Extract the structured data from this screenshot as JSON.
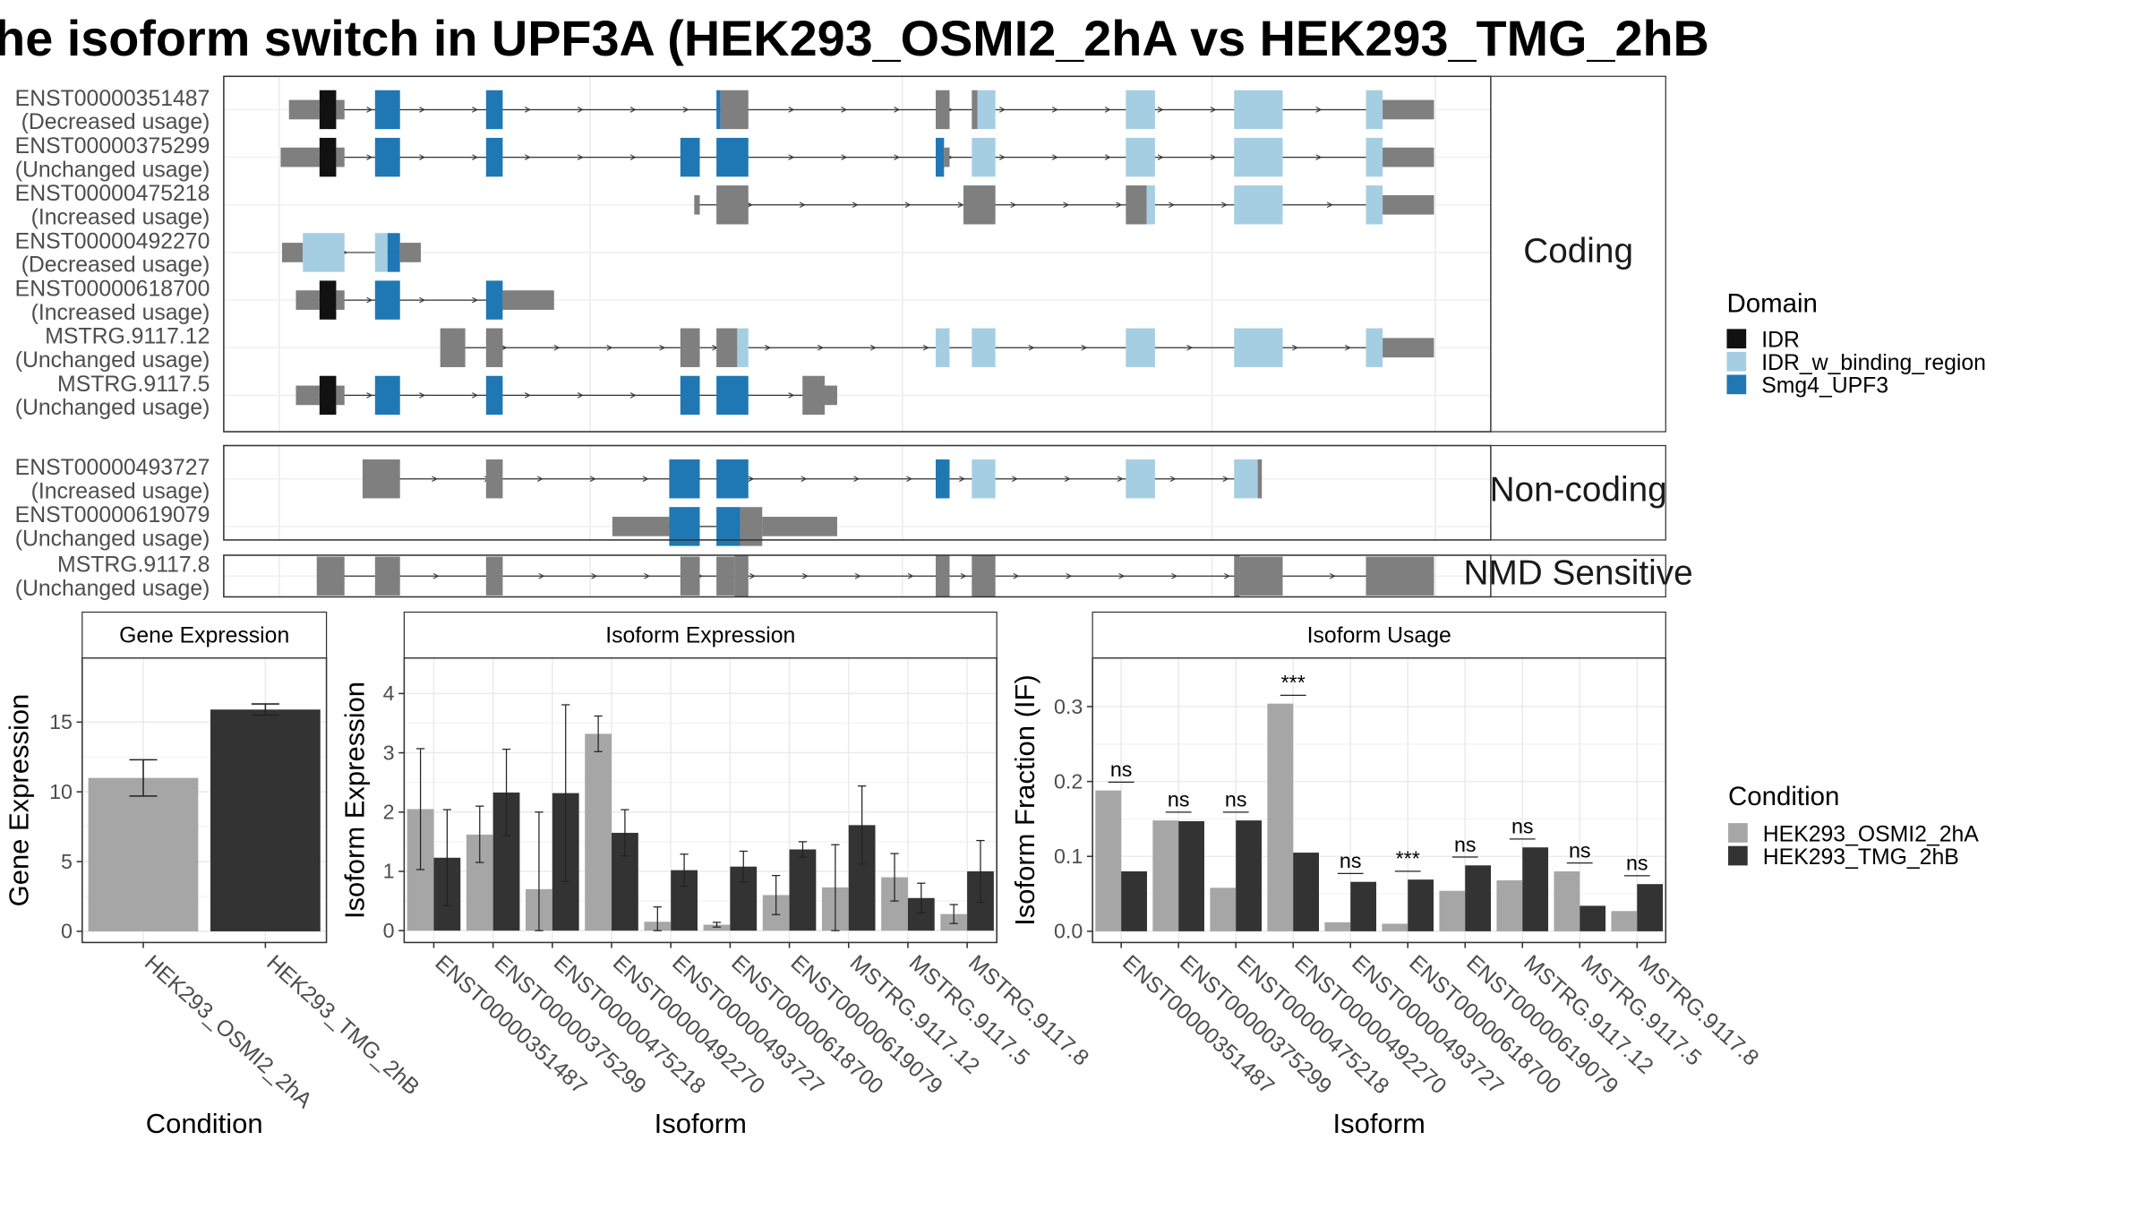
{
  "title": "he isoform switch in UPF3A (HEK293_OSMI2_2hA vs HEK293_TMG_2hB",
  "colors": {
    "IDR": "#111111",
    "IDR_w_binding_region": "#a6cee3",
    "Smg4_UPF3": "#1f78b4",
    "exon": "#7f7f7f",
    "cond1": "#a6a6a6",
    "cond2": "#333333"
  },
  "legend_domain": {
    "title": "Domain",
    "items": [
      {
        "name": "IDR",
        "color": "#111111"
      },
      {
        "name": "IDR_w_binding_region",
        "color": "#a6cee3"
      },
      {
        "name": "Smg4_UPF3",
        "color": "#1f78b4"
      }
    ]
  },
  "legend_condition": {
    "title": "Condition",
    "items": [
      {
        "name": "HEK293_OSMI2_2hA",
        "color": "#a6a6a6"
      },
      {
        "name": "HEK293_TMG_2hB",
        "color": "#333333"
      }
    ]
  },
  "transcript_panels": [
    {
      "strip": "Coding",
      "rows": [
        {
          "id": "ENST00000351487",
          "usage": "(Decreased usage)",
          "segs": [
            [
              208,
              230,
              "u"
            ],
            [
              230,
              242,
              "D"
            ],
            [
              242,
              248,
              "u"
            ],
            [
              270,
              288,
              "S"
            ],
            [
              350,
              362,
              "S"
            ],
            [
              516,
              519,
              "S"
            ],
            [
              519,
              539,
              "c"
            ],
            [
              674,
              684,
              "c"
            ],
            [
              700,
              704,
              "c"
            ],
            [
              704,
              717,
              "B"
            ],
            [
              811,
              832,
              "B"
            ],
            [
              889,
              924,
              "B"
            ],
            [
              984,
              996,
              "B"
            ],
            [
              996,
              1033,
              "u"
            ]
          ],
          "line": [
            228,
            1000
          ]
        },
        {
          "id": "ENST00000375299",
          "usage": "(Unchanged usage)",
          "segs": [
            [
              202,
              230,
              "u"
            ],
            [
              230,
              242,
              "D"
            ],
            [
              242,
              248,
              "u"
            ],
            [
              270,
              288,
              "S"
            ],
            [
              350,
              362,
              "S"
            ],
            [
              490,
              504,
              "S"
            ],
            [
              516,
              539,
              "S"
            ],
            [
              674,
              680,
              "S"
            ],
            [
              680,
              684,
              "u"
            ],
            [
              700,
              717,
              "B"
            ],
            [
              811,
              832,
              "B"
            ],
            [
              889,
              924,
              "B"
            ],
            [
              984,
              996,
              "B"
            ],
            [
              996,
              1033,
              "u"
            ]
          ],
          "line": [
            228,
            1000
          ]
        },
        {
          "id": "ENST00000475218",
          "usage": "(Increased usage)",
          "segs": [
            [
              500,
              504,
              "u"
            ],
            [
              516,
              539,
              "c"
            ],
            [
              694,
              717,
              "c"
            ],
            [
              811,
              826,
              "c"
            ],
            [
              826,
              832,
              "B"
            ],
            [
              889,
              924,
              "B"
            ],
            [
              984,
              996,
              "B"
            ],
            [
              996,
              1033,
              "u"
            ]
          ],
          "line": [
            502,
            1000
          ]
        },
        {
          "id": "ENST00000492270",
          "usage": "(Decreased usage)",
          "segs": [
            [
              203,
              218,
              "u"
            ],
            [
              218,
              248,
              "B"
            ],
            [
              270,
              279,
              "B"
            ],
            [
              279,
              288,
              "S"
            ],
            [
              288,
              303,
              "u"
            ]
          ],
          "line": [
            210,
            290
          ]
        },
        {
          "id": "ENST00000618700",
          "usage": "(Increased usage)",
          "segs": [
            [
              213,
              230,
              "u"
            ],
            [
              230,
              242,
              "D"
            ],
            [
              242,
              248,
              "u"
            ],
            [
              270,
              288,
              "S"
            ],
            [
              350,
              362,
              "S"
            ],
            [
              362,
              399,
              "u"
            ]
          ],
          "line": [
            228,
            380
          ]
        },
        {
          "id": "MSTRG.9117.12",
          "usage": "(Unchanged usage)",
          "segs": [
            [
              317,
              335,
              "c"
            ],
            [
              350,
              362,
              "c"
            ],
            [
              490,
              504,
              "c"
            ],
            [
              516,
              531,
              "c"
            ],
            [
              531,
              539,
              "B"
            ],
            [
              674,
              684,
              "B"
            ],
            [
              700,
              717,
              "B"
            ],
            [
              811,
              832,
              "B"
            ],
            [
              889,
              924,
              "B"
            ],
            [
              984,
              996,
              "B"
            ],
            [
              996,
              1033,
              "u"
            ]
          ],
          "line": [
            325,
            1000
          ]
        },
        {
          "id": "MSTRG.9117.5",
          "usage": "(Unchanged usage)",
          "segs": [
            [
              213,
              230,
              "u"
            ],
            [
              230,
              242,
              "D"
            ],
            [
              242,
              248,
              "u"
            ],
            [
              270,
              288,
              "S"
            ],
            [
              350,
              362,
              "S"
            ],
            [
              490,
              504,
              "S"
            ],
            [
              516,
              539,
              "S"
            ],
            [
              578,
              594,
              "c"
            ],
            [
              594,
              603,
              "u"
            ]
          ],
          "line": [
            228,
            590
          ]
        }
      ]
    },
    {
      "strip": "Non-coding",
      "rows": [
        {
          "id": "ENST00000493727",
          "usage": "(Increased usage)",
          "segs": [
            [
              261,
              288,
              "c"
            ],
            [
              350,
              362,
              "c"
            ],
            [
              482,
              504,
              "S"
            ],
            [
              516,
              539,
              "S"
            ],
            [
              674,
              684,
              "S"
            ],
            [
              700,
              717,
              "B"
            ],
            [
              811,
              832,
              "B"
            ],
            [
              889,
              906,
              "B"
            ],
            [
              906,
              909,
              "c"
            ]
          ],
          "line": [
            275,
            905
          ]
        },
        {
          "id": "ENST00000619079",
          "usage": "(Unchanged usage)",
          "segs": [
            [
              441,
              482,
              "u"
            ],
            [
              482,
              504,
              "S"
            ],
            [
              516,
              533,
              "S"
            ],
            [
              533,
              549,
              "c"
            ],
            [
              549,
              603,
              "u"
            ]
          ],
          "line": [
            460,
            590
          ]
        }
      ]
    },
    {
      "strip": "NMD Sensitive",
      "rows": [
        {
          "id": "MSTRG.9117.8",
          "usage": "(Unchanged usage)",
          "segs": [
            [
              228,
              248,
              "c"
            ],
            [
              270,
              288,
              "c"
            ],
            [
              350,
              362,
              "c"
            ],
            [
              490,
              504,
              "c"
            ],
            [
              516,
              529,
              "c"
            ],
            [
              529,
              539,
              "t"
            ],
            [
              674,
              684,
              "t"
            ],
            [
              700,
              717,
              "t"
            ],
            [
              889,
              893,
              "t"
            ],
            [
              893,
              924,
              "c"
            ],
            [
              984,
              1033,
              "c"
            ]
          ],
          "line": [
            238,
            1000
          ]
        }
      ]
    }
  ],
  "chart_data": [
    {
      "type": "bar",
      "title": "Gene Expression",
      "xlabel": "Condition",
      "ylabel": "Gene Expression",
      "categories": [
        "HEK293_OSMI2_2hA",
        "HEK293_TMG_2hB"
      ],
      "values": [
        11.0,
        15.9
      ],
      "errors": [
        [
          9.7,
          12.3
        ],
        [
          15.5,
          16.3
        ]
      ],
      "ylim": [
        -0.8,
        19.6
      ],
      "yticks": [
        0,
        5,
        10,
        15
      ]
    },
    {
      "type": "bar",
      "title": "Isoform Expression",
      "xlabel": "Isoform",
      "ylabel": "Isoform Expression",
      "categories": [
        "ENST00000351487",
        "ENST00000375299",
        "ENST00000475218",
        "ENST00000492270",
        "ENST00000493727",
        "ENST00000618700",
        "ENST00000619079",
        "MSTRG.9117.12",
        "MSTRG.9117.5",
        "MSTRG.9117.8"
      ],
      "series": [
        {
          "name": "HEK293_OSMI2_2hA",
          "values": [
            2.05,
            1.62,
            0.7,
            3.32,
            0.15,
            0.1,
            0.6,
            0.73,
            0.9,
            0.28
          ],
          "errors": [
            [
              1.03,
              3.07
            ],
            [
              1.15,
              2.1
            ],
            [
              0.0,
              2.0
            ],
            [
              3.02,
              3.62
            ],
            [
              0.0,
              0.4
            ],
            [
              0.06,
              0.14
            ],
            [
              0.27,
              0.93
            ],
            [
              0.0,
              1.45
            ],
            [
              0.5,
              1.3
            ],
            [
              0.12,
              0.44
            ]
          ]
        },
        {
          "name": "HEK293_TMG_2hB",
          "values": [
            1.23,
            2.33,
            2.32,
            1.65,
            1.02,
            1.08,
            1.37,
            1.78,
            0.55,
            1.0
          ],
          "errors": [
            [
              0.42,
              2.04
            ],
            [
              1.6,
              3.06
            ],
            [
              0.83,
              3.81
            ],
            [
              1.26,
              2.04
            ],
            [
              0.75,
              1.29
            ],
            [
              0.82,
              1.34
            ],
            [
              1.24,
              1.5
            ],
            [
              1.12,
              2.44
            ],
            [
              0.3,
              0.8
            ],
            [
              0.48,
              1.52
            ]
          ]
        }
      ],
      "ylim": [
        -0.2,
        4.6
      ],
      "yticks": [
        0,
        1,
        2,
        3,
        4
      ]
    },
    {
      "type": "bar",
      "title": "Isoform Usage",
      "xlabel": "Isoform",
      "ylabel": "Isoform Fraction (IF)",
      "categories": [
        "ENST00000351487",
        "ENST00000375299",
        "ENST00000475218",
        "ENST00000492270",
        "ENST00000493727",
        "ENST00000618700",
        "ENST00000619079",
        "MSTRG.9117.12",
        "MSTRG.9117.5",
        "MSTRG.9117.8"
      ],
      "series": [
        {
          "name": "HEK293_OSMI2_2hA",
          "values": [
            0.188,
            0.148,
            0.058,
            0.304,
            0.012,
            0.01,
            0.054,
            0.068,
            0.08,
            0.027
          ]
        },
        {
          "name": "HEK293_TMG_2hB",
          "values": [
            0.08,
            0.147,
            0.148,
            0.105,
            0.066,
            0.069,
            0.088,
            0.112,
            0.034,
            0.063
          ]
        }
      ],
      "significance": [
        "ns",
        "ns",
        "ns",
        "***",
        "ns",
        "***",
        "ns",
        "ns",
        "ns",
        "ns"
      ],
      "ylim": [
        -0.015,
        0.365
      ],
      "yticks": [
        0.0,
        0.1,
        0.2,
        0.3
      ],
      "ytick_labels": [
        "0.0",
        "0.1",
        "0.2",
        "0.3"
      ]
    }
  ]
}
